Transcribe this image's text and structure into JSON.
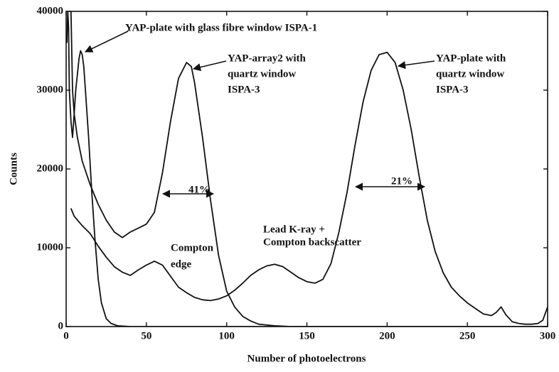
{
  "chart_data": {
    "type": "line",
    "xlabel": "Number of photoelectrons",
    "ylabel": "Counts",
    "xlim": [
      0,
      300
    ],
    "ylim": [
      0,
      40000
    ],
    "xticks": [
      0,
      50,
      100,
      150,
      200,
      250,
      300
    ],
    "yticks": [
      0,
      10000,
      20000,
      30000,
      40000
    ],
    "grid": false,
    "series": [
      {
        "name": "YAP-plate with glass fibre window ISPA-1",
        "color": "#111111",
        "x": [
          0.5,
          1,
          1.5,
          2,
          3,
          4,
          5,
          6,
          7,
          8,
          9,
          10,
          11,
          12,
          14,
          16,
          18,
          20,
          22,
          25,
          28,
          32,
          40,
          60,
          100,
          300
        ],
        "values": [
          36000,
          40000,
          38000,
          30000,
          26000,
          24000,
          27000,
          30000,
          32000,
          34000,
          35000,
          34500,
          33000,
          30000,
          24000,
          17000,
          11000,
          6000,
          3000,
          1000,
          400,
          100,
          0,
          0,
          0,
          0
        ]
      },
      {
        "name": "YAP-array2 with quartz window ISPA-3",
        "color": "#111111",
        "x": [
          3,
          4,
          5,
          7,
          10,
          15,
          20,
          25,
          30,
          35,
          40,
          45,
          50,
          55,
          60,
          65,
          70,
          75,
          78,
          80,
          85,
          90,
          95,
          100,
          105,
          110,
          115,
          120,
          130,
          140,
          150,
          200,
          300
        ],
        "values": [
          40000,
          30000,
          27000,
          24000,
          21000,
          18000,
          15500,
          13500,
          12000,
          11300,
          12000,
          12500,
          13000,
          14500,
          19500,
          26000,
          31500,
          33500,
          33000,
          31000,
          24000,
          16000,
          9000,
          4500,
          2500,
          1300,
          700,
          300,
          100,
          0,
          0,
          0,
          0
        ]
      },
      {
        "name": "YAP-plate with quartz window ISPA-3",
        "color": "#111111",
        "x": [
          3,
          5,
          10,
          15,
          20,
          25,
          30,
          35,
          40,
          45,
          50,
          55,
          60,
          65,
          70,
          75,
          80,
          85,
          90,
          95,
          100,
          105,
          110,
          115,
          120,
          125,
          130,
          135,
          140,
          145,
          150,
          155,
          160,
          165,
          170,
          175,
          180,
          185,
          190,
          195,
          200,
          205,
          210,
          215,
          220,
          225,
          230,
          235,
          240,
          245,
          250,
          255,
          260,
          265,
          268,
          271,
          274,
          278,
          282,
          286,
          290,
          294,
          297,
          300
        ],
        "values": [
          15000,
          14000,
          12800,
          11800,
          10200,
          8800,
          7600,
          6900,
          6500,
          7200,
          7800,
          8300,
          7800,
          6400,
          5000,
          4300,
          3700,
          3400,
          3300,
          3500,
          3900,
          4600,
          5500,
          6500,
          7200,
          7700,
          7900,
          7600,
          6900,
          6200,
          5700,
          5500,
          6000,
          8000,
          12000,
          17000,
          23000,
          28500,
          32500,
          34500,
          34800,
          33500,
          30000,
          25000,
          19000,
          13500,
          9500,
          6800,
          5000,
          3900,
          3000,
          2300,
          1600,
          1400,
          1800,
          2500,
          1500,
          600,
          400,
          300,
          300,
          400,
          800,
          2500
        ]
      }
    ],
    "annotations": [
      {
        "lines": [
          "YAP-plate with glass fibre window ISPA-1"
        ]
      },
      {
        "lines": [
          "YAP-array2 with",
          "quartz window",
          "ISPA-3"
        ]
      },
      {
        "lines": [
          "YAP-plate with",
          "quartz window",
          "ISPA-3"
        ]
      },
      {
        "lines": [
          "41%"
        ]
      },
      {
        "lines": [
          "21%"
        ]
      },
      {
        "lines": [
          "Compton",
          "edge"
        ]
      },
      {
        "lines": [
          "Lead K-ray +",
          "Compton backscatter"
        ]
      }
    ]
  }
}
